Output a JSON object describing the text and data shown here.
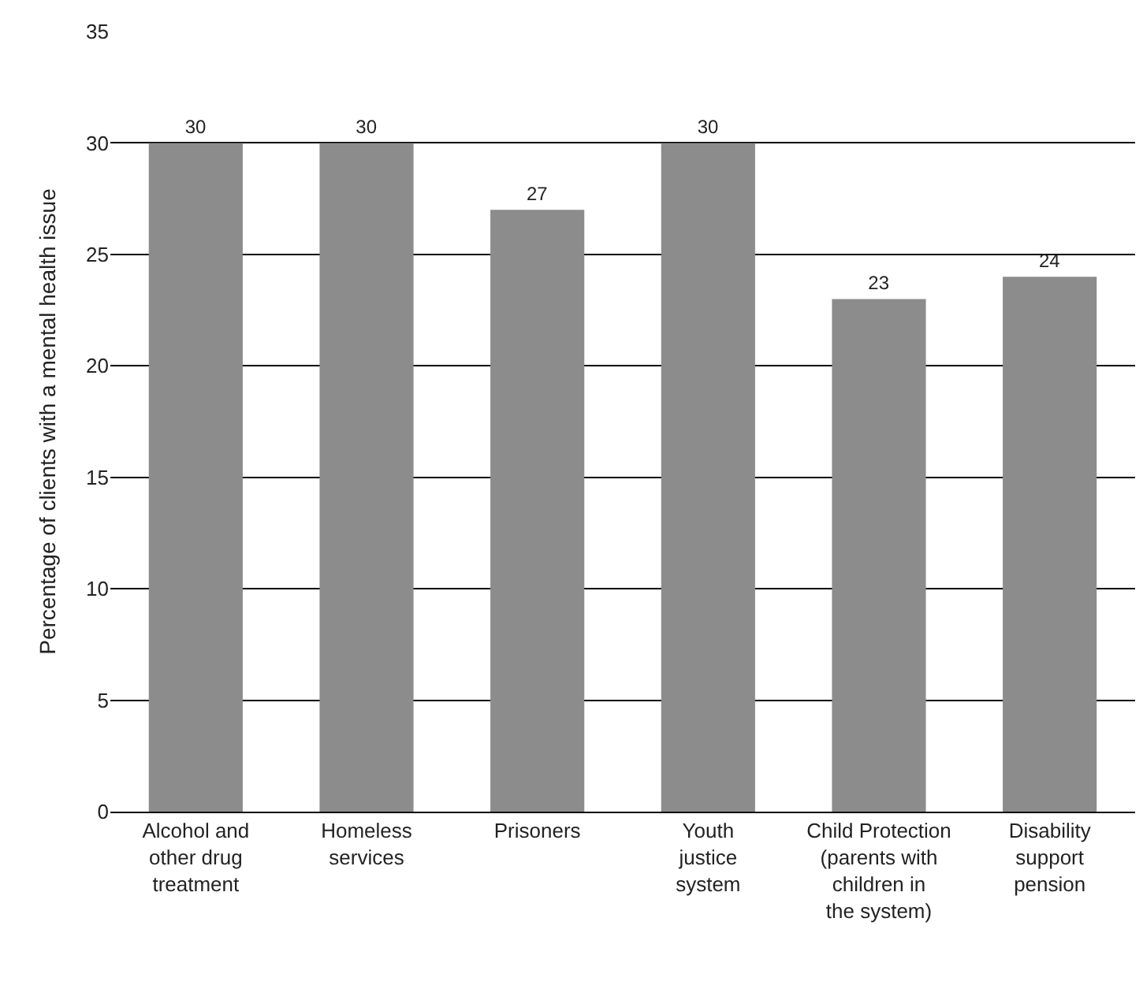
{
  "chart_data": {
    "type": "bar",
    "ylabel": "Percentage of clients with a mental health issue",
    "categories": [
      "Alcohol and\nother drug\ntreatment",
      "Homeless\nservices",
      "Prisoners",
      "Youth\njustice\nsystem",
      "Child Protection\n(parents with\nchildren in\nthe system)",
      "Disability\nsupport\npension"
    ],
    "values": [
      30,
      30,
      27,
      30,
      23,
      24
    ],
    "color": "#8c8c8c",
    "ylim": [
      0,
      35
    ],
    "yticks": [
      0,
      5,
      10,
      15,
      20,
      25,
      30,
      35
    ],
    "grid": "y",
    "data_labels": true,
    "legend": false
  }
}
